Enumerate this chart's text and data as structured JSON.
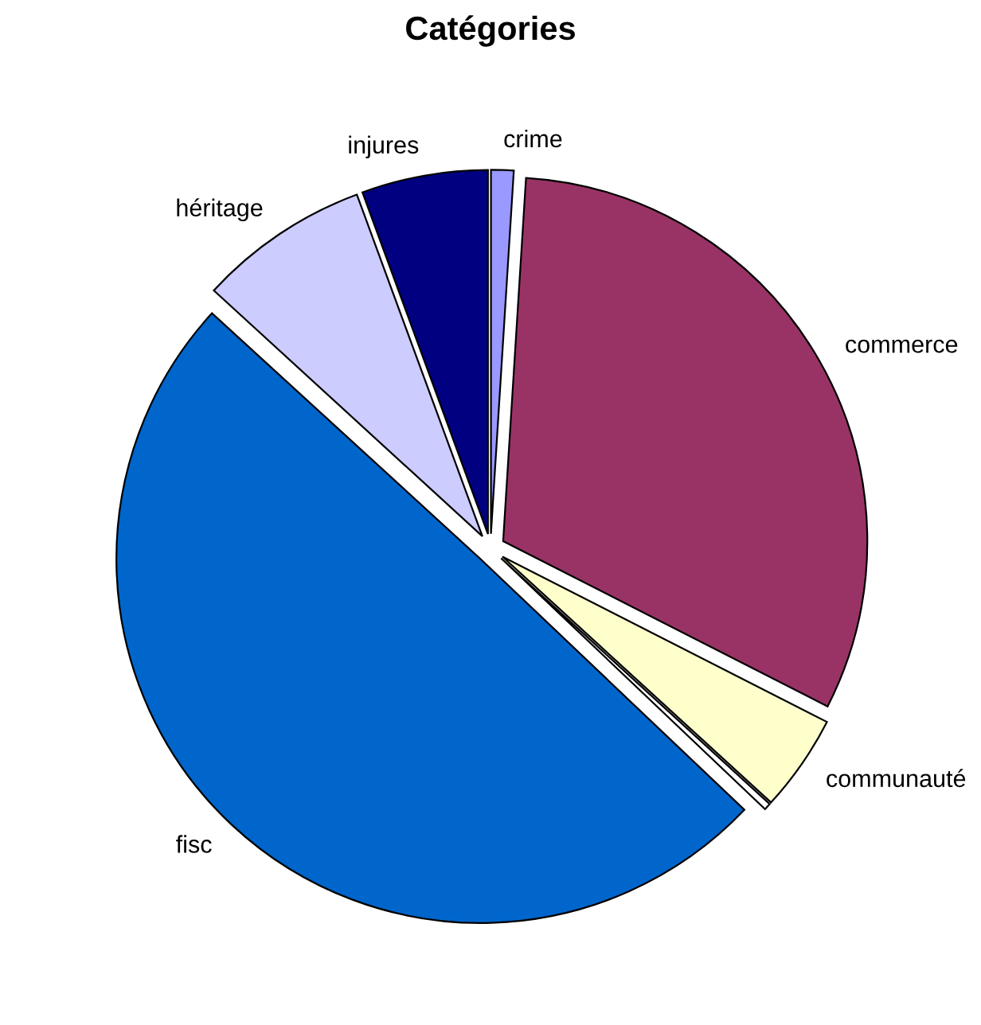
{
  "chart_data": {
    "type": "pie",
    "title": "Catégories",
    "categories": [
      "crime",
      "commerce",
      "communauté",
      null,
      "fisc",
      "héritage",
      "injures"
    ],
    "values": [
      1,
      31.5,
      4.3,
      0.3,
      49.7,
      7.6,
      5.6
    ],
    "colors": [
      "#9999ff",
      "#993366",
      "#ffffcc",
      "#ffffff",
      "#0066cc",
      "#ccccff",
      "#000080"
    ],
    "legend": false
  }
}
